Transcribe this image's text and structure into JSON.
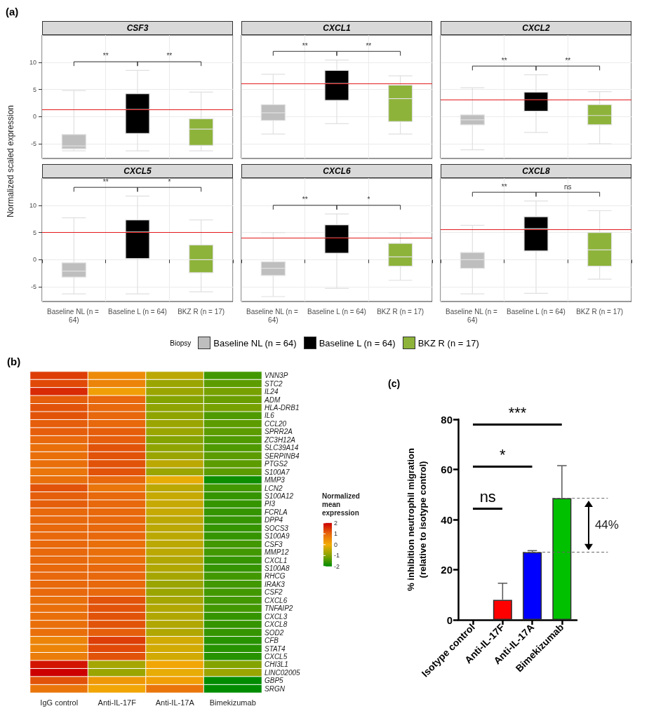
{
  "chart_data": [
    {
      "type": "box",
      "title": "CSF3",
      "ylabel": "Normalized scaled expression",
      "legend": "bottom",
      "legend_title": "Biopsy",
      "annotations": [
        "(a)",
        "**",
        "**"
      ],
      "categories": [
        "Baseline NL (n = 64)",
        "Baseline L (n = 64)",
        "BKZ R (n = 17)"
      ],
      "ylim": [
        -7.7,
        15
      ],
      "yticks": [
        -5,
        0,
        5,
        10
      ],
      "grid": true,
      "tick_labels": "y",
      "ref_lines": [
        {
          "axis": "y",
          "value": 1.3,
          "color": "#e31a1c"
        }
      ],
      "series": [
        {
          "name": "Baseline NL (n = 64)",
          "color": "#bebebe",
          "boxes": [
            {
              "low": -6.3,
              "q1": -5.9,
              "median": -5.4,
              "q3": -3.3,
              "high": 4.8
            },
            null,
            null
          ]
        },
        {
          "name": "Baseline L (n = 64)",
          "color": "#000000",
          "boxes": [
            null,
            {
              "low": -6.3,
              "q1": -3.1,
              "median": 1.3,
              "q3": 4.2,
              "high": 8.5
            },
            null
          ]
        },
        {
          "name": "BKZ R (n = 17)",
          "color": "#8db33a",
          "boxes": [
            null,
            null,
            {
              "low": -6.3,
              "q1": -5.3,
              "median": -2.3,
              "q3": -0.4,
              "high": 4.5
            }
          ]
        }
      ]
    },
    {
      "type": "box",
      "title": "CXCL1",
      "annotations": [
        "**",
        "**"
      ],
      "categories": [
        "Baseline NL (n = 64)",
        "Baseline L (n = 64)",
        "BKZ R (n = 17)"
      ],
      "ylim": [
        -7.7,
        15
      ],
      "yticks": [
        -5,
        0,
        5,
        10
      ],
      "grid": true,
      "tick_labels": false,
      "ref_lines": [
        {
          "axis": "y",
          "value": 6.1,
          "color": "#e31a1c"
        }
      ],
      "series": [
        {
          "color": "#bebebe",
          "boxes": [
            {
              "low": -3.2,
              "q1": -0.7,
              "median": 0.7,
              "q3": 2.2,
              "high": 7.8
            },
            null,
            null
          ]
        },
        {
          "color": "#000000",
          "boxes": [
            null,
            {
              "low": -1.3,
              "q1": 3.0,
              "median": 6.1,
              "q3": 8.5,
              "high": 10.4
            },
            null
          ]
        },
        {
          "color": "#8db33a",
          "boxes": [
            null,
            null,
            {
              "low": -3.2,
              "q1": -0.9,
              "median": 3.3,
              "q3": 5.8,
              "high": 7.5
            }
          ]
        }
      ]
    },
    {
      "type": "box",
      "title": "CXCL2",
      "annotations": [
        "**",
        "**"
      ],
      "categories": [
        "Baseline NL (n = 64)",
        "Baseline L (n = 64)",
        "BKZ R (n = 17)"
      ],
      "ylim": [
        -7.7,
        15
      ],
      "yticks": [
        -5,
        0,
        5,
        10
      ],
      "grid": true,
      "tick_labels": false,
      "ref_lines": [
        {
          "axis": "y",
          "value": 3.1,
          "color": "#e31a1c"
        }
      ],
      "series": [
        {
          "color": "#bebebe",
          "boxes": [
            {
              "low": -6.1,
              "q1": -1.5,
              "median": -0.6,
              "q3": 0.3,
              "high": 5.3
            },
            null,
            null
          ]
        },
        {
          "color": "#000000",
          "boxes": [
            null,
            {
              "low": -2.9,
              "q1": 1.0,
              "median": 3.1,
              "q3": 4.5,
              "high": 7.7
            },
            null
          ]
        },
        {
          "color": "#8db33a",
          "boxes": [
            null,
            null,
            {
              "low": -5.0,
              "q1": -1.5,
              "median": 0.2,
              "q3": 2.2,
              "high": 4.6
            }
          ]
        }
      ]
    },
    {
      "type": "box",
      "title": "CXCL5",
      "annotations": [
        "**",
        "*"
      ],
      "categories": [
        "Baseline NL (n = 64)",
        "Baseline L (n = 64)",
        "BKZ R (n = 17)"
      ],
      "ylim": [
        -7.7,
        15
      ],
      "yticks": [
        -5,
        0,
        5,
        10
      ],
      "grid": true,
      "ref_lines": [
        {
          "axis": "y",
          "value": 5.0,
          "color": "#e31a1c"
        }
      ],
      "series": [
        {
          "color": "#bebebe",
          "boxes": [
            {
              "low": -6.3,
              "q1": -3.2,
              "median": -2.1,
              "q3": -0.6,
              "high": 7.7
            },
            null,
            null
          ]
        },
        {
          "color": "#000000",
          "boxes": [
            null,
            {
              "low": -6.3,
              "q1": 0.2,
              "median": 5.1,
              "q3": 7.3,
              "high": 11.7
            },
            null
          ]
        },
        {
          "color": "#8db33a",
          "boxes": [
            null,
            null,
            {
              "low": -5.9,
              "q1": -2.4,
              "median": 0.0,
              "q3": 2.7,
              "high": 7.3
            }
          ]
        }
      ]
    },
    {
      "type": "box",
      "title": "CXCL6",
      "annotations": [
        "**",
        "*"
      ],
      "categories": [
        "Baseline NL (n = 64)",
        "Baseline L (n = 64)",
        "BKZ R (n = 17)"
      ],
      "ylim": [
        -7.7,
        15
      ],
      "yticks": [
        -5,
        0,
        5,
        10
      ],
      "grid": true,
      "tick_labels": "x",
      "ref_lines": [
        {
          "axis": "y",
          "value": 4.0,
          "color": "#e31a1c"
        }
      ],
      "series": [
        {
          "color": "#bebebe",
          "boxes": [
            {
              "low": -6.8,
              "q1": -2.9,
              "median": -1.6,
              "q3": -0.4,
              "high": 5.0
            },
            null,
            null
          ]
        },
        {
          "color": "#000000",
          "boxes": [
            null,
            {
              "low": -5.3,
              "q1": 1.2,
              "median": 4.0,
              "q3": 6.4,
              "high": 8.4
            },
            null
          ]
        },
        {
          "color": "#8db33a",
          "boxes": [
            null,
            null,
            {
              "low": -3.8,
              "q1": -1.2,
              "median": 0.5,
              "q3": 3.0,
              "high": 5.0
            }
          ]
        }
      ]
    },
    {
      "type": "box",
      "title": "CXCL8",
      "annotations": [
        "**",
        "ns"
      ],
      "categories": [
        "Baseline NL (n = 64)",
        "Baseline L (n = 64)",
        "BKZ R (n = 17)"
      ],
      "ylim": [
        -7.7,
        15
      ],
      "yticks": [
        -5,
        0,
        5,
        10
      ],
      "grid": true,
      "tick_labels": "x",
      "ref_lines": [
        {
          "axis": "y",
          "value": 5.6,
          "color": "#e31a1c"
        }
      ],
      "series": [
        {
          "color": "#bebebe",
          "boxes": [
            {
              "low": -6.3,
              "q1": -1.6,
              "median": 0.0,
              "q3": 1.3,
              "high": 6.3
            },
            null,
            null
          ]
        },
        {
          "color": "#000000",
          "boxes": [
            null,
            {
              "low": -6.2,
              "q1": 1.6,
              "median": 5.7,
              "q3": 7.9,
              "high": 10.8
            },
            null
          ]
        },
        {
          "color": "#8db33a",
          "boxes": [
            null,
            null,
            {
              "low": -3.6,
              "q1": -1.2,
              "median": 1.8,
              "q3": 5.0,
              "high": 9.0
            }
          ]
        }
      ]
    },
    {
      "type": "heatmap",
      "annotations": [
        "(b)"
      ],
      "clabel": "Normalized mean expression",
      "clim": [
        -2,
        2
      ],
      "cticks": [
        -2,
        -1,
        0,
        1,
        2
      ],
      "categories": [
        "IgG control",
        "Anti-IL-17F",
        "Anti-IL-17A",
        "Bimekizumab"
      ],
      "y_categories": [
        "VNN3P",
        "STC2",
        "IL24",
        "ADM",
        "HLA-DRB1",
        "IL6",
        "CCL20",
        "SPRR2A",
        "ZC3H12A",
        "SLC39A14",
        "SERPINB4",
        "PTGS2",
        "S100A7",
        "MMP3",
        "LCN2",
        "S100A12",
        "PI3",
        "FCRLA",
        "DPP4",
        "SOCS3",
        "S100A9",
        "CSF3",
        "MMP12",
        "CXCL1",
        "S100A8",
        "RHCG",
        "IRAK3",
        "CSF2",
        "CXCL6",
        "TNFAIP2",
        "CXCL3",
        "CXCL8",
        "SOD2",
        "CFB",
        "STAT4",
        "CXCL5",
        "CHI3L1",
        "LINC02005",
        "GBP5",
        "SRGN"
      ],
      "cells": [
        [
          1.4,
          0.5,
          -0.5,
          -1.5
        ],
        [
          1.3,
          0.6,
          -0.8,
          -1.3
        ],
        [
          1.6,
          0.2,
          -0.8,
          -1.1
        ],
        [
          1.1,
          1.0,
          -1.0,
          -1.2
        ],
        [
          1.2,
          1.0,
          -0.9,
          -1.1
        ],
        [
          1.2,
          1.0,
          -0.9,
          -1.4
        ],
        [
          1.1,
          1.0,
          -0.8,
          -1.3
        ],
        [
          1.1,
          1.1,
          -0.8,
          -1.3
        ],
        [
          1.0,
          1.1,
          -1.0,
          -1.4
        ],
        [
          0.9,
          1.2,
          -0.9,
          -1.4
        ],
        [
          0.9,
          1.2,
          -0.8,
          -1.3
        ],
        [
          0.9,
          1.2,
          -0.5,
          -1.3
        ],
        [
          0.8,
          1.2,
          -0.8,
          -1.3
        ],
        [
          0.9,
          1.0,
          -0.1,
          -1.9
        ],
        [
          1.2,
          0.8,
          -0.5,
          -1.5
        ],
        [
          1.1,
          1.0,
          -0.4,
          -1.6
        ],
        [
          1.1,
          1.0,
          -0.4,
          -1.6
        ],
        [
          1.0,
          1.0,
          -0.4,
          -1.6
        ],
        [
          1.0,
          1.0,
          -0.5,
          -1.6
        ],
        [
          1.0,
          1.0,
          -0.5,
          -1.6
        ],
        [
          1.0,
          1.0,
          -0.5,
          -1.6
        ],
        [
          1.0,
          0.9,
          -0.5,
          -1.5
        ],
        [
          1.0,
          0.9,
          -0.5,
          -1.5
        ],
        [
          1.0,
          0.9,
          -0.6,
          -1.6
        ],
        [
          1.0,
          1.0,
          -0.6,
          -1.6
        ],
        [
          1.0,
          1.0,
          -0.7,
          -1.5
        ],
        [
          1.0,
          1.0,
          -0.8,
          -1.5
        ],
        [
          1.0,
          1.0,
          -0.8,
          -1.5
        ],
        [
          0.9,
          1.2,
          -0.7,
          -1.5
        ],
        [
          0.9,
          1.2,
          -0.6,
          -1.5
        ],
        [
          0.9,
          1.2,
          -0.6,
          -1.6
        ],
        [
          0.9,
          1.2,
          -0.6,
          -1.6
        ],
        [
          0.9,
          1.1,
          -0.6,
          -1.6
        ],
        [
          0.6,
          1.4,
          -0.3,
          -1.7
        ],
        [
          0.6,
          1.3,
          -0.3,
          -1.7
        ],
        [
          0.7,
          1.2,
          -0.3,
          -1.7
        ],
        [
          1.8,
          -0.7,
          0.1,
          -1.0
        ],
        [
          2.0,
          -0.8,
          -0.1,
          -0.8
        ],
        [
          1.2,
          0.3,
          0.2,
          -2.0
        ],
        [
          0.8,
          0.1,
          0.8,
          -2.0
        ]
      ]
    },
    {
      "type": "bar",
      "annotations": [
        "(c)",
        "ns",
        "*",
        "***",
        "44%"
      ],
      "ref_lines": [
        {
          "axis": "y",
          "value": 27,
          "color": "#666666",
          "line_style": "dashed"
        },
        {
          "axis": "y",
          "value": 48.5,
          "color": "#666666",
          "line_style": "dashed"
        }
      ],
      "ylabel": "% inhibition neutrophil migration\n(relative to isotype control)",
      "categories": [
        "Isotype control",
        "Anti-IL-17F",
        "Anti-IL-17A",
        "Bimekizumab"
      ],
      "values": [
        0,
        8,
        27,
        48.5
      ],
      "colors": [
        "#ff0000",
        "#ff0000",
        "#0000ff",
        "#00c000"
      ],
      "errors": [
        null,
        [
          8,
          14.6
        ],
        [
          27,
          27.6
        ],
        [
          48.5,
          61.5
        ]
      ],
      "ylim": [
        0,
        80
      ],
      "yticks": [
        0,
        20,
        40,
        60,
        80
      ]
    }
  ]
}
